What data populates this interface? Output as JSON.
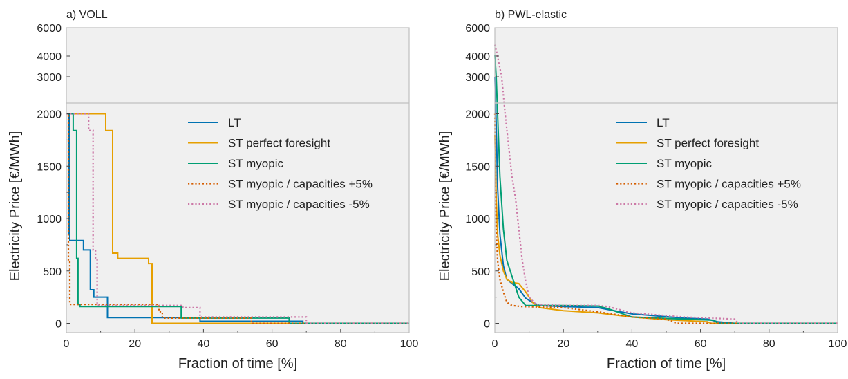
{
  "chart_data": [
    {
      "type": "line",
      "title": "a) VOLL",
      "xlabel": "Fraction of time [%]",
      "ylabel": "Electricity Price [€/MWh]",
      "xlim": [
        0,
        100
      ],
      "ylim": [
        -80,
        6000
      ],
      "y_scale": "broken: linear 0-2000 below break, compressed 2000-6000 above break",
      "xticks": [
        "0",
        "20",
        "40",
        "60",
        "80",
        "100"
      ],
      "yticks_lower": [
        "0",
        "500",
        "1000",
        "1500",
        "2000"
      ],
      "yticks_upper": [
        "3000",
        "4000",
        "6000"
      ],
      "grid": false,
      "legend_placement": "upper-center",
      "series": [
        {
          "name": "LT",
          "color": "#0072b2",
          "style": "solid",
          "x": [
            0,
            0.8,
            0.8,
            1.0,
            1.0,
            5.0,
            5.0,
            7.0,
            7.0,
            8.0,
            8.0,
            12.0,
            12.0,
            39.0,
            39.0,
            69.0,
            69.0,
            100
          ],
          "y": [
            2000,
            2000,
            850,
            850,
            790,
            790,
            700,
            700,
            320,
            320,
            250,
            250,
            55,
            55,
            20,
            20,
            0,
            0
          ]
        },
        {
          "name": "ST perfect foresight",
          "color": "#e69f00",
          "style": "solid",
          "x": [
            0,
            11.5,
            11.5,
            13.5,
            13.5,
            15.0,
            15.0,
            24.0,
            24.0,
            25.0,
            25.0,
            100
          ],
          "y": [
            2000,
            2000,
            1840,
            1840,
            670,
            670,
            620,
            620,
            570,
            570,
            0,
            0
          ]
        },
        {
          "name": "ST myopic",
          "color": "#009e73",
          "style": "solid",
          "x": [
            0,
            2.0,
            2.0,
            3.0,
            3.0,
            3.4,
            3.4,
            4.0,
            4.0,
            33.5,
            33.5,
            65.0,
            65.0,
            100
          ],
          "y": [
            2000,
            2000,
            1840,
            1840,
            620,
            620,
            180,
            180,
            160,
            160,
            50,
            50,
            0,
            0
          ]
        },
        {
          "name": "ST myopic / capacities +5%",
          "color": "#d55e00",
          "style": "dotted",
          "x": [
            0,
            0.6,
            0.6,
            1.0,
            1.0,
            27.0,
            27.0,
            28.0,
            28.0,
            54.0,
            54.0,
            100
          ],
          "y": [
            2000,
            2000,
            600,
            600,
            180,
            180,
            110,
            110,
            50,
            50,
            0,
            0
          ]
        },
        {
          "name": "ST myopic / capacities -5%",
          "color": "#cc79a7",
          "style": "dotted",
          "x": [
            0,
            6.5,
            6.5,
            7.8,
            7.8,
            8.5,
            8.5,
            9.0,
            9.0,
            9.4,
            9.4,
            34.0,
            34.0,
            39.0,
            39.0,
            70.0,
            70.0,
            100
          ],
          "y": [
            2000,
            2000,
            1840,
            1840,
            700,
            700,
            620,
            620,
            180,
            180,
            170,
            170,
            150,
            150,
            60,
            60,
            0,
            0
          ]
        }
      ]
    },
    {
      "type": "line",
      "title": "b) PWL-elastic",
      "xlabel": "Fraction of time [%]",
      "ylabel": "Electricity Price [€/MWh]",
      "xlim": [
        0,
        100
      ],
      "ylim": [
        -80,
        6000
      ],
      "y_scale": "broken: linear 0-2000 below break, compressed 2000-6000 above break",
      "xticks": [
        "0",
        "20",
        "40",
        "60",
        "80",
        "100"
      ],
      "yticks_lower": [
        "0",
        "500",
        "1000",
        "1500",
        "2000"
      ],
      "yticks_upper": [
        "3000",
        "4000",
        "6000"
      ],
      "grid": false,
      "legend_placement": "upper-center",
      "series": [
        {
          "name": "LT",
          "color": "#0072b2",
          "style": "solid",
          "x": [
            0,
            0.4,
            0.8,
            1.5,
            2.5,
            3.5,
            5,
            7,
            9,
            11,
            13,
            20,
            30,
            40,
            55,
            62,
            65,
            70,
            100
          ],
          "y": [
            3000,
            1900,
            1300,
            850,
            550,
            420,
            380,
            330,
            240,
            200,
            170,
            160,
            150,
            90,
            50,
            40,
            15,
            0,
            0
          ]
        },
        {
          "name": "ST perfect foresight",
          "color": "#e69f00",
          "style": "solid",
          "x": [
            0,
            0.4,
            0.8,
            1.5,
            2.5,
            3.5,
            5,
            7,
            9,
            11,
            13,
            20,
            30,
            40,
            50,
            62,
            63,
            100
          ],
          "y": [
            1800,
            1200,
            850,
            650,
            500,
            420,
            390,
            380,
            300,
            200,
            150,
            120,
            100,
            60,
            35,
            15,
            0,
            0
          ]
        },
        {
          "name": "ST myopic",
          "color": "#009e73",
          "style": "solid",
          "x": [
            0,
            0.4,
            0.8,
            1.5,
            2.5,
            3.5,
            5,
            7,
            9,
            12,
            20,
            30,
            33,
            40,
            55,
            64,
            65,
            100
          ],
          "y": [
            4100,
            3000,
            2000,
            1400,
            900,
            600,
            450,
            250,
            170,
            170,
            170,
            165,
            140,
            60,
            40,
            30,
            0,
            0
          ]
        },
        {
          "name": "ST myopic / capacities +5%",
          "color": "#d55e00",
          "style": "dotted",
          "x": [
            0,
            0.4,
            0.8,
            1.5,
            2.5,
            3.5,
            5,
            8,
            20,
            30,
            40,
            50,
            53,
            60,
            100
          ],
          "y": [
            2000,
            900,
            600,
            420,
            300,
            200,
            170,
            160,
            150,
            110,
            60,
            40,
            0,
            0,
            0
          ]
        },
        {
          "name": "ST myopic / capacities -5%",
          "color": "#cc79a7",
          "style": "dotted",
          "x": [
            0,
            0.5,
            1,
            2,
            3,
            4,
            5,
            6,
            7,
            8,
            9,
            10,
            12,
            20,
            30,
            33,
            40,
            55,
            70,
            71,
            100
          ],
          "y": [
            4800,
            4300,
            3800,
            3000,
            2000,
            1700,
            1400,
            1200,
            900,
            600,
            400,
            250,
            180,
            170,
            170,
            160,
            100,
            60,
            40,
            0,
            0
          ]
        }
      ]
    }
  ]
}
